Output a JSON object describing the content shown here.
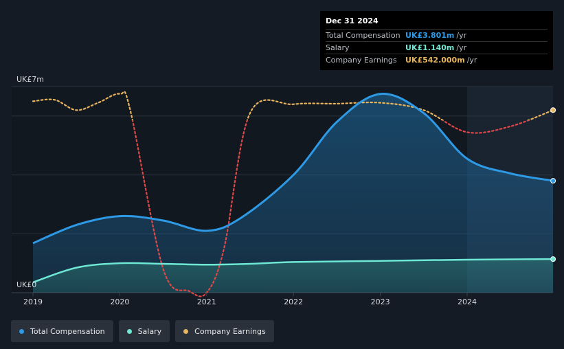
{
  "tooltip": {
    "date": "Dec 31 2024",
    "rows": [
      {
        "label": "Total Compensation",
        "value": "UK£3.801m",
        "unit": "/yr",
        "color": "#2e9ae6"
      },
      {
        "label": "Salary",
        "value": "UK£1.140m",
        "unit": "/yr",
        "color": "#6ee7d4"
      },
      {
        "label": "Company Earnings",
        "value": "UK£542.000m",
        "unit": "/yr",
        "color": "#e8b45e"
      }
    ]
  },
  "legend": [
    {
      "label": "Total Compensation",
      "color": "#2e9ae6"
    },
    {
      "label": "Salary",
      "color": "#6ee7d4"
    },
    {
      "label": "Company Earnings",
      "color": "#e8b45e"
    }
  ],
  "chart_data": {
    "type": "line",
    "y_top_label": "UK£7m",
    "y_bottom_label": "UK£0",
    "ylim": [
      0,
      7
    ],
    "xlim": [
      2019,
      2024.99
    ],
    "x_ticks": [
      "2019",
      "2020",
      "2021",
      "2022",
      "2023",
      "2024"
    ],
    "forecast_start": 2024,
    "series": [
      {
        "name": "Total Compensation",
        "color": "#2e9ae6",
        "x": [
          2019,
          2019.5,
          2020,
          2020.5,
          2021,
          2021.4,
          2022,
          2022.5,
          2023,
          2023.5,
          2024,
          2024.5,
          2024.99
        ],
        "y": [
          1.68,
          2.3,
          2.6,
          2.45,
          2.1,
          2.55,
          4.0,
          5.8,
          6.75,
          6.1,
          4.55,
          4.05,
          3.8
        ]
      },
      {
        "name": "Salary",
        "color": "#6ee7d4",
        "x": [
          2019,
          2019.5,
          2020,
          2020.5,
          2021,
          2021.5,
          2022,
          2023,
          2024,
          2024.99
        ],
        "y": [
          0.35,
          0.85,
          1.0,
          0.98,
          0.95,
          0.98,
          1.04,
          1.08,
          1.12,
          1.14
        ]
      },
      {
        "name": "Company Earnings",
        "color": "#e8b45e",
        "x": [
          2019,
          2019.25,
          2019.5,
          2019.75,
          2020,
          2020.12,
          2020.5,
          2020.8,
          2021,
          2021.2,
          2021.5,
          2022,
          2022.5,
          2023,
          2023.5,
          2024,
          2024.5,
          2024.99
        ],
        "y": [
          6.5,
          6.55,
          6.2,
          6.45,
          6.75,
          6.2,
          0.8,
          0.05,
          0.0,
          1.5,
          6.1,
          6.4,
          6.42,
          6.45,
          6.2,
          5.45,
          5.65,
          6.2
        ]
      }
    ]
  }
}
